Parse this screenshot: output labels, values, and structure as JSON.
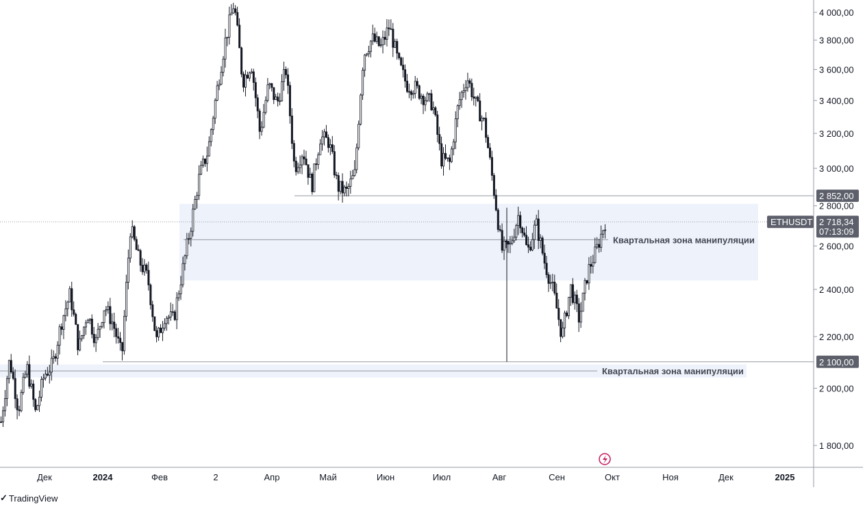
{
  "brand": {
    "logo_icon": "tradingview-logo-icon",
    "name": "TradingView"
  },
  "ticker": {
    "symbol": "ETHUSDT",
    "price": "2 718,34",
    "countdown": "07:13:09"
  },
  "colors": {
    "candle": "#131722",
    "zone_fill": "#eef3fb",
    "level_line": "#9598a1",
    "label_bg": "#5d606b",
    "axis_line": "#9598a1",
    "bolt_icon": "#c2185b"
  },
  "zone_label_top": "Квартальная зона манипуляции",
  "zone_label_bottom": "Квартальная зона манипуляции",
  "chart_data": {
    "type": "candlestick",
    "symbol": "ETHUSDT",
    "title": "",
    "xlabel": "",
    "ylabel": "",
    "ylim": [
      1660,
      4080
    ],
    "y_scale": "log",
    "x_ticks": [
      "Дек",
      "2024",
      "Фев",
      "2",
      "Апр",
      "Май",
      "Июн",
      "Июл",
      "Авг",
      "Сен",
      "Окт",
      "Ноя",
      "Дек",
      "2025"
    ],
    "bold_x_ticks": [
      "2024",
      "2025"
    ],
    "y_ticks": [
      "4 000,00",
      "3 800,00",
      "3 600,00",
      "3 400,00",
      "3 200,00",
      "3 000,00",
      "2 800,00",
      "2 600,00",
      "2 400,00",
      "2 200,00",
      "2 000,00",
      "1 800,00"
    ],
    "y_tick_values": [
      4000,
      3800,
      3600,
      3400,
      3200,
      3000,
      2800,
      2600,
      2400,
      2200,
      2000,
      1800
    ],
    "levels": [
      {
        "value": 2852,
        "label": "2 852,00"
      },
      {
        "value": 2100,
        "label": "2 100,00"
      }
    ],
    "last_price": 2718.34,
    "zones": [
      {
        "name": "Квартальная зона манипуляции",
        "low": 2440,
        "high": 2810,
        "mid": 2630
      },
      {
        "name": "Квартальная зона манипуляции",
        "low": 2040,
        "high": 2090,
        "mid": 2065
      }
    ],
    "price_path_closes": [
      1880,
      2110,
      1920,
      2080,
      1910,
      2050,
      2090,
      2260,
      2380,
      2150,
      2300,
      2180,
      2330,
      2250,
      2120,
      2690,
      2530,
      2450,
      2180,
      2290,
      2270,
      2480,
      2700,
      2960,
      3100,
      3460,
      3800,
      4070,
      3520,
      3640,
      3200,
      3500,
      3380,
      3600,
      3000,
      3100,
      2900,
      3180,
      3150,
      2900,
      2870,
      2970,
      3700,
      3810,
      3750,
      3900,
      3650,
      3500,
      3480,
      3420,
      3380,
      3050,
      3030,
      3380,
      3550,
      3380,
      3260,
      2920,
      2580,
      2600,
      2760,
      2570,
      2710,
      2520,
      2390,
      2200,
      2410,
      2270,
      2480,
      2580,
      2718
    ]
  }
}
